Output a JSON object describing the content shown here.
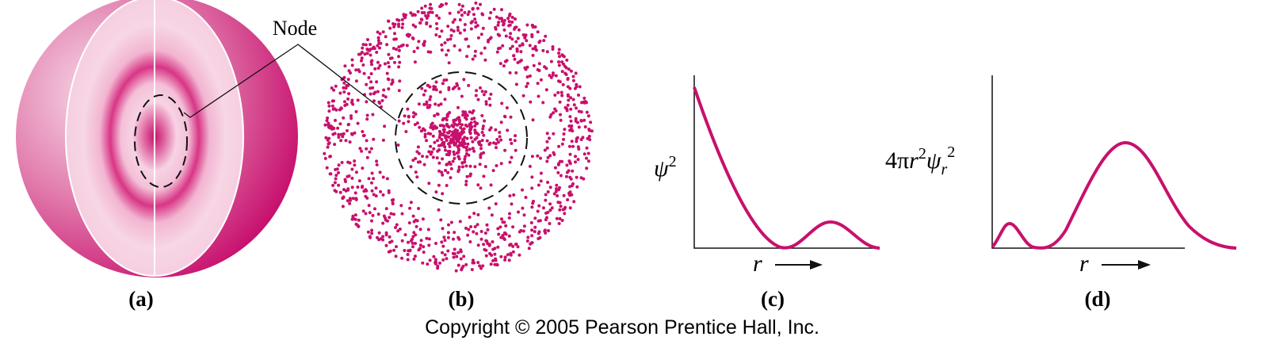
{
  "node_label": "Node",
  "panels": [
    {
      "caption": "(a)"
    },
    {
      "caption": "(b)"
    },
    {
      "caption": "(c)",
      "y_label": {
        "base": "ψ",
        "sup": "2"
      },
      "x_label": "r"
    },
    {
      "caption": "(d)",
      "y_label": {
        "prefix": "4π",
        "r": "r",
        "r_sup": "2",
        "psi": "ψ",
        "psi_sub": "r",
        "psi_sup": "2"
      },
      "x_label": "r"
    }
  ],
  "footer": "Copyright © 2005 Pearson Prentice Hall, Inc."
}
